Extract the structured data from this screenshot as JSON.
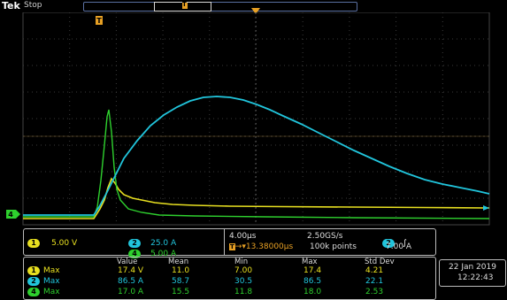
{
  "header": {
    "logo": "Tek",
    "status": "Stop",
    "trigger_pos_marker": "T",
    "record_marker": "T"
  },
  "plot": {
    "left_markers": {
      "ch4": "4"
    },
    "colors": {
      "ch1": "#e8e020",
      "ch2": "#21c5dc",
      "ch4": "#2ed02e",
      "grid": "#3a3a3a",
      "trigger": "#e7a024"
    }
  },
  "channels_panel": {
    "ch1": {
      "num": "1",
      "scale": "5.00 V"
    },
    "ch2": {
      "num": "2",
      "scale": "25.0 A"
    },
    "ch4": {
      "num": "4",
      "scale": "5.00 A"
    }
  },
  "timebase": {
    "scale": "4.00µs",
    "sample_rate": "2.50GS/s",
    "trig_delay": "13.38000µs",
    "record_length": "100k points"
  },
  "trigger": {
    "source": "2",
    "slope": "rising",
    "level": "7.00 A"
  },
  "measurements": {
    "headers": [
      "Value",
      "Mean",
      "Min",
      "Max",
      "Std Dev"
    ],
    "rows": [
      {
        "ch": "1",
        "type": "Max",
        "value": "17.4 V",
        "mean": "11.0",
        "min": "7.00",
        "max": "17.4",
        "std": "4.21"
      },
      {
        "ch": "2",
        "type": "Max",
        "value": "86.5 A",
        "mean": "58.7",
        "min": "30.5",
        "max": "86.5",
        "std": "22.1"
      },
      {
        "ch": "4",
        "type": "Max",
        "value": "17.0 A",
        "mean": "15.5",
        "min": "11.8",
        "max": "18.0",
        "std": "2.53"
      }
    ]
  },
  "clock": {
    "date": "22 Jan  2019",
    "time": "12:22:43"
  }
}
